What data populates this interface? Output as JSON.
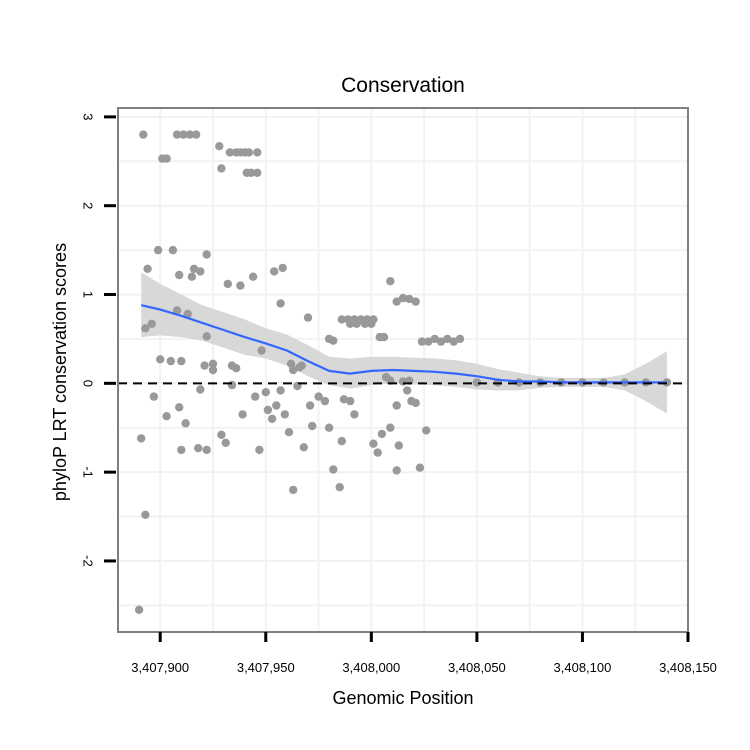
{
  "chart_data": {
    "type": "scatter",
    "title": "Conservation",
    "xlabel": "Genomic Position",
    "ylabel": "phyloP LRT conservation scores",
    "xlim": [
      3407880,
      3408150
    ],
    "ylim": [
      -2.8,
      3.1
    ],
    "x_ticks": [
      {
        "value": 3407900,
        "label": "3,407,900"
      },
      {
        "value": 3407950,
        "label": "3,407,950"
      },
      {
        "value": 3408000,
        "label": "3,408,000"
      },
      {
        "value": 3408050,
        "label": "3,408,050"
      },
      {
        "value": 3408100,
        "label": "3,408,100"
      },
      {
        "value": 3408150,
        "label": "3,408,150"
      }
    ],
    "y_ticks": [
      {
        "value": -2,
        "label": "-2"
      },
      {
        "value": -1,
        "label": "-1"
      },
      {
        "value": 0,
        "label": "0"
      },
      {
        "value": 1,
        "label": "1"
      },
      {
        "value": 2,
        "label": "2"
      },
      {
        "value": 3,
        "label": "3"
      }
    ],
    "reference_line": {
      "y": 0,
      "style": "dashed"
    },
    "colors": {
      "points": "#999999",
      "smooth": "#3366ff",
      "band": "#d4d4d4",
      "panel_border": "#7f7f7f",
      "grid": "#f2f2f2"
    },
    "points": [
      [
        3407892,
        2.8
      ],
      [
        3407901,
        2.53
      ],
      [
        3407903,
        2.53
      ],
      [
        3407908,
        2.8
      ],
      [
        3407911,
        2.8
      ],
      [
        3407914,
        2.8
      ],
      [
        3407917,
        2.8
      ],
      [
        3407928,
        2.67
      ],
      [
        3407933,
        2.6
      ],
      [
        3407936,
        2.6
      ],
      [
        3407938,
        2.6
      ],
      [
        3407940,
        2.6
      ],
      [
        3407942,
        2.6
      ],
      [
        3407946,
        2.6
      ],
      [
        3407929,
        2.42
      ],
      [
        3407941,
        2.37
      ],
      [
        3407943,
        2.37
      ],
      [
        3407946,
        2.37
      ],
      [
        3407899,
        1.5
      ],
      [
        3407906,
        1.5
      ],
      [
        3407894,
        1.29
      ],
      [
        3407909,
        1.22
      ],
      [
        3407916,
        1.29
      ],
      [
        3407919,
        1.26
      ],
      [
        3407922,
        1.45
      ],
      [
        3407932,
        1.12
      ],
      [
        3407938,
        1.1
      ],
      [
        3407944,
        1.2
      ],
      [
        3407954,
        1.26
      ],
      [
        3407958,
        1.3
      ],
      [
        3407915,
        1.2
      ],
      [
        3407893,
        0.62
      ],
      [
        3407896,
        0.67
      ],
      [
        3407908,
        0.82
      ],
      [
        3407913,
        0.78
      ],
      [
        3407900,
        0.27
      ],
      [
        3407905,
        0.25
      ],
      [
        3407910,
        0.25
      ],
      [
        3407921,
        0.2
      ],
      [
        3407925,
        0.22
      ],
      [
        3407925,
        0.15
      ],
      [
        3407934,
        0.2
      ],
      [
        3407936,
        0.17
      ],
      [
        3407922,
        0.53
      ],
      [
        3407948,
        0.37
      ],
      [
        3407957,
        0.9
      ],
      [
        3407962,
        0.22
      ],
      [
        3407963,
        0.15
      ],
      [
        3407966,
        0.18
      ],
      [
        3407967,
        0.2
      ],
      [
        3407970,
        0.74
      ],
      [
        3407980,
        0.5
      ],
      [
        3407982,
        0.48
      ],
      [
        3407986,
        0.72
      ],
      [
        3407989,
        0.72
      ],
      [
        3407992,
        0.72
      ],
      [
        3407995,
        0.72
      ],
      [
        3407998,
        0.72
      ],
      [
        3408001,
        0.72
      ],
      [
        3407990,
        0.67
      ],
      [
        3407993,
        0.67
      ],
      [
        3407997,
        0.67
      ],
      [
        3408000,
        0.67
      ],
      [
        3408006,
        0.52
      ],
      [
        3408007,
        0.07
      ],
      [
        3408009,
        0.03
      ],
      [
        3408004,
        0.52
      ],
      [
        3408009,
        1.15
      ],
      [
        3408012,
        0.92
      ],
      [
        3408015,
        0.96
      ],
      [
        3408018,
        0.95
      ],
      [
        3408021,
        0.92
      ],
      [
        3408024,
        0.47
      ],
      [
        3408027,
        0.47
      ],
      [
        3408030,
        0.5
      ],
      [
        3408033,
        0.47
      ],
      [
        3408036,
        0.5
      ],
      [
        3408039,
        0.47
      ],
      [
        3408042,
        0.5
      ],
      [
        3408015,
        0.02
      ],
      [
        3408018,
        0.03
      ],
      [
        3408050,
        0.01
      ],
      [
        3408060,
        0.01
      ],
      [
        3408070,
        0.01
      ],
      [
        3408080,
        0.01
      ],
      [
        3408090,
        0.01
      ],
      [
        3408100,
        0.01
      ],
      [
        3408110,
        0.01
      ],
      [
        3408120,
        0.01
      ],
      [
        3408130,
        0.01
      ],
      [
        3408140,
        0.01
      ],
      [
        3407891,
        -0.62
      ],
      [
        3407893,
        -1.48
      ],
      [
        3407890,
        -2.55
      ],
      [
        3407897,
        -0.15
      ],
      [
        3407903,
        -0.37
      ],
      [
        3407909,
        -0.27
      ],
      [
        3407910,
        -0.75
      ],
      [
        3407912,
        -0.45
      ],
      [
        3407919,
        -0.07
      ],
      [
        3407918,
        -0.73
      ],
      [
        3407922,
        -0.75
      ],
      [
        3407929,
        -0.58
      ],
      [
        3407931,
        -0.67
      ],
      [
        3407934,
        -0.02
      ],
      [
        3407939,
        -0.35
      ],
      [
        3407945,
        -0.15
      ],
      [
        3407947,
        -0.75
      ],
      [
        3407950,
        -0.1
      ],
      [
        3407951,
        -0.3
      ],
      [
        3407953,
        -0.4
      ],
      [
        3407955,
        -0.25
      ],
      [
        3407957,
        -0.08
      ],
      [
        3407959,
        -0.35
      ],
      [
        3407961,
        -0.55
      ],
      [
        3407963,
        -1.2
      ],
      [
        3407965,
        -0.03
      ],
      [
        3407968,
        -0.72
      ],
      [
        3407971,
        -0.25
      ],
      [
        3407972,
        -0.48
      ],
      [
        3407975,
        -0.15
      ],
      [
        3407978,
        -0.2
      ],
      [
        3407980,
        -0.5
      ],
      [
        3407982,
        -0.97
      ],
      [
        3407985,
        -1.17
      ],
      [
        3407986,
        -0.65
      ],
      [
        3407987,
        -0.18
      ],
      [
        3407990,
        -0.2
      ],
      [
        3407992,
        -0.35
      ],
      [
        3408001,
        -0.68
      ],
      [
        3408003,
        -0.78
      ],
      [
        3408005,
        -0.57
      ],
      [
        3408009,
        -0.5
      ],
      [
        3408012,
        -0.25
      ],
      [
        3408012,
        -0.98
      ],
      [
        3408013,
        -0.7
      ],
      [
        3408017,
        -0.08
      ],
      [
        3408019,
        -0.2
      ],
      [
        3408021,
        -0.22
      ],
      [
        3408023,
        -0.95
      ],
      [
        3408026,
        -0.53
      ]
    ],
    "smooth": [
      [
        3407891,
        0.88
      ],
      [
        3407900,
        0.83
      ],
      [
        3407910,
        0.76
      ],
      [
        3407920,
        0.68
      ],
      [
        3407930,
        0.6
      ],
      [
        3407940,
        0.52
      ],
      [
        3407950,
        0.45
      ],
      [
        3407960,
        0.37
      ],
      [
        3407970,
        0.25
      ],
      [
        3407980,
        0.14
      ],
      [
        3407990,
        0.11
      ],
      [
        3408000,
        0.14
      ],
      [
        3408010,
        0.15
      ],
      [
        3408020,
        0.14
      ],
      [
        3408030,
        0.13
      ],
      [
        3408040,
        0.11
      ],
      [
        3408050,
        0.08
      ],
      [
        3408060,
        0.04
      ],
      [
        3408070,
        0.02
      ],
      [
        3408080,
        0.02
      ],
      [
        3408090,
        0.01
      ],
      [
        3408100,
        0.01
      ],
      [
        3408110,
        0.01
      ],
      [
        3408120,
        0.01
      ],
      [
        3408130,
        0.01
      ],
      [
        3408140,
        0.01
      ]
    ],
    "band_upper": [
      [
        3407891,
        1.25
      ],
      [
        3407900,
        1.12
      ],
      [
        3407910,
        1.0
      ],
      [
        3407920,
        0.88
      ],
      [
        3407930,
        0.8
      ],
      [
        3407940,
        0.72
      ],
      [
        3407950,
        0.62
      ],
      [
        3407960,
        0.55
      ],
      [
        3407970,
        0.43
      ],
      [
        3407980,
        0.3
      ],
      [
        3407990,
        0.28
      ],
      [
        3408000,
        0.3
      ],
      [
        3408010,
        0.3
      ],
      [
        3408020,
        0.29
      ],
      [
        3408030,
        0.28
      ],
      [
        3408040,
        0.26
      ],
      [
        3408050,
        0.22
      ],
      [
        3408060,
        0.16
      ],
      [
        3408070,
        0.12
      ],
      [
        3408080,
        0.08
      ],
      [
        3408090,
        0.06
      ],
      [
        3408100,
        0.06
      ],
      [
        3408110,
        0.06
      ],
      [
        3408120,
        0.1
      ],
      [
        3408130,
        0.22
      ],
      [
        3408140,
        0.36
      ]
    ],
    "band_lower": [
      [
        3407891,
        0.52
      ],
      [
        3407900,
        0.54
      ],
      [
        3407910,
        0.52
      ],
      [
        3407920,
        0.48
      ],
      [
        3407930,
        0.4
      ],
      [
        3407940,
        0.32
      ],
      [
        3407950,
        0.28
      ],
      [
        3407960,
        0.2
      ],
      [
        3407970,
        0.08
      ],
      [
        3407980,
        -0.02
      ],
      [
        3407990,
        -0.06
      ],
      [
        3408000,
        -0.02
      ],
      [
        3408010,
        0.0
      ],
      [
        3408020,
        -0.01
      ],
      [
        3408030,
        -0.02
      ],
      [
        3408040,
        -0.04
      ],
      [
        3408050,
        -0.07
      ],
      [
        3408060,
        -0.08
      ],
      [
        3408070,
        -0.08
      ],
      [
        3408080,
        -0.05
      ],
      [
        3408090,
        -0.04
      ],
      [
        3408100,
        -0.04
      ],
      [
        3408110,
        -0.04
      ],
      [
        3408120,
        -0.08
      ],
      [
        3408130,
        -0.2
      ],
      [
        3408140,
        -0.34
      ]
    ]
  }
}
